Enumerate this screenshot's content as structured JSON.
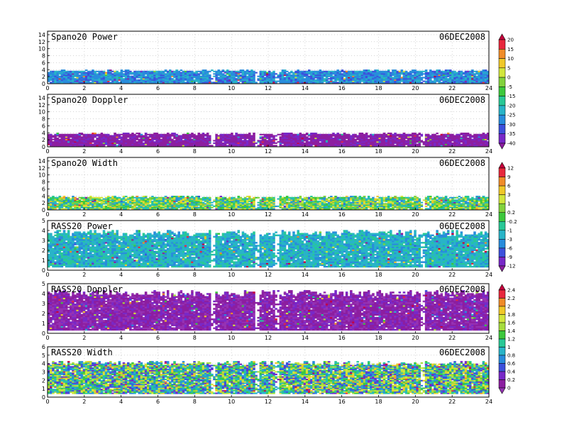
{
  "chart_data": [
    {
      "type": "heatmap",
      "title": "Spano20 Power",
      "date": "06DEC2008",
      "x": {
        "range": [
          0,
          24
        ],
        "ticks": [
          0,
          2,
          4,
          6,
          8,
          10,
          12,
          14,
          16,
          18,
          20,
          22,
          24
        ]
      },
      "y": {
        "range": [
          0,
          15
        ],
        "ticks": [
          0,
          2,
          4,
          6,
          8,
          10,
          12,
          14
        ]
      },
      "data_height_range": [
        0.2,
        3.6
      ],
      "typical_value": -25,
      "palette": "power",
      "gaps_hours": [
        8.9,
        11.3,
        12.4,
        20.3
      ],
      "grid": "dotted"
    },
    {
      "type": "heatmap",
      "title": "Spano20 Doppler",
      "date": "06DEC2008",
      "x": {
        "range": [
          0,
          24
        ],
        "ticks": [
          0,
          2,
          4,
          6,
          8,
          10,
          12,
          14,
          16,
          18,
          20,
          22,
          24
        ]
      },
      "y": {
        "range": [
          0,
          15
        ],
        "ticks": [
          0,
          2,
          4,
          6,
          8,
          10,
          12,
          14
        ]
      },
      "data_height_range": [
        0.2,
        3.6
      ],
      "typical_value": -40,
      "palette": "power",
      "gaps_hours": [
        8.9,
        11.3,
        12.4,
        20.3
      ],
      "grid": "dotted"
    },
    {
      "type": "heatmap",
      "title": "Spano20 Width",
      "date": "06DEC2008",
      "x": {
        "range": [
          0,
          24
        ],
        "ticks": [
          0,
          2,
          4,
          6,
          8,
          10,
          12,
          14,
          16,
          18,
          20,
          22,
          24
        ]
      },
      "y": {
        "range": [
          0,
          15
        ],
        "ticks": [
          0,
          2,
          4,
          6,
          8,
          10,
          12,
          14
        ]
      },
      "data_height_range": [
        0.2,
        3.6
      ],
      "typical_value": 0,
      "palette": "width",
      "gaps_hours": [
        8.9,
        11.3,
        12.4,
        20.3
      ],
      "grid": "dotted"
    },
    {
      "type": "heatmap",
      "title": "RASS20 Power",
      "date": "06DEC2008",
      "x": {
        "range": [
          0,
          24
        ],
        "ticks": [
          0,
          2,
          4,
          6,
          8,
          10,
          12,
          14,
          16,
          18,
          20,
          22,
          24
        ]
      },
      "y": {
        "range": [
          0,
          5
        ],
        "ticks": [
          0,
          1,
          2,
          3,
          4,
          5
        ]
      },
      "data_height_range": [
        0.3,
        3.7
      ],
      "typical_value": -3,
      "palette": "width",
      "gaps_hours": [
        8.9,
        11.3,
        12.4,
        20.3
      ],
      "grid": "dotted"
    },
    {
      "type": "heatmap",
      "title": "RASS20 Doppler",
      "date": "06DEC2008",
      "x": {
        "range": [
          0,
          24
        ],
        "ticks": [
          0,
          2,
          4,
          6,
          8,
          10,
          12,
          14,
          16,
          18,
          20,
          22,
          24
        ]
      },
      "y": {
        "range": [
          0,
          5
        ],
        "ticks": [
          0,
          1,
          2,
          3,
          4,
          5
        ]
      },
      "data_height_range": [
        0.3,
        4.0
      ],
      "typical_value": 0.1,
      "palette": "rass",
      "gaps_hours": [
        8.9,
        11.3,
        12.4,
        20.3
      ],
      "grid": "dotted"
    },
    {
      "type": "heatmap",
      "title": "RASS20 Width",
      "date": "06DEC2008",
      "x": {
        "range": [
          0,
          24
        ],
        "ticks": [
          0,
          2,
          4,
          6,
          8,
          10,
          12,
          14,
          16,
          18,
          20,
          22,
          24
        ]
      },
      "y": {
        "range": [
          0,
          6
        ],
        "ticks": [
          0,
          1,
          2,
          3,
          4,
          5,
          6
        ]
      },
      "data_height_range": [
        0.4,
        4.0
      ],
      "typical_value": 1.1,
      "palette": "rass",
      "gaps_hours": [
        8.9,
        11.3,
        12.4,
        20.3
      ],
      "grid": "dotted"
    }
  ],
  "colorbars": [
    {
      "name": "power",
      "labels": [
        "20",
        "15",
        "10",
        "5",
        "0",
        "-5",
        "-15",
        "-20",
        "-25",
        "-30",
        "-35",
        "-40"
      ],
      "colors": [
        "#c8003c",
        "#e8283c",
        "#f08c28",
        "#f0c828",
        "#d2e63c",
        "#82d23c",
        "#3cc83c",
        "#28c896",
        "#28b4c8",
        "#288cdc",
        "#3c50dc",
        "#7828c8",
        "#8c1ea0"
      ]
    },
    {
      "name": "width",
      "labels": [
        "12",
        "9",
        "6",
        "3",
        "1",
        "0.2",
        "-0.2",
        "-1",
        "-3",
        "-6",
        "-9",
        "-12"
      ],
      "colors": [
        "#c8003c",
        "#e8283c",
        "#f08c28",
        "#f0c828",
        "#d2e63c",
        "#82d23c",
        "#3cc83c",
        "#28c896",
        "#28b4c8",
        "#288cdc",
        "#3c50dc",
        "#7828c8",
        "#8c1ea0"
      ]
    },
    {
      "name": "rass",
      "labels": [
        "2.4",
        "2.2",
        "2",
        "1.8",
        "1.6",
        "1.4",
        "1.2",
        "1",
        "0.8",
        "0.6",
        "0.4",
        "0.2",
        "0"
      ],
      "colors": [
        "#c8003c",
        "#e8283c",
        "#f08c28",
        "#f0c828",
        "#d2e63c",
        "#a6dc3c",
        "#3cc83c",
        "#28c896",
        "#28b4c8",
        "#288cdc",
        "#3c50dc",
        "#7828c8",
        "#8c1ea0",
        "#9632b4"
      ]
    }
  ]
}
